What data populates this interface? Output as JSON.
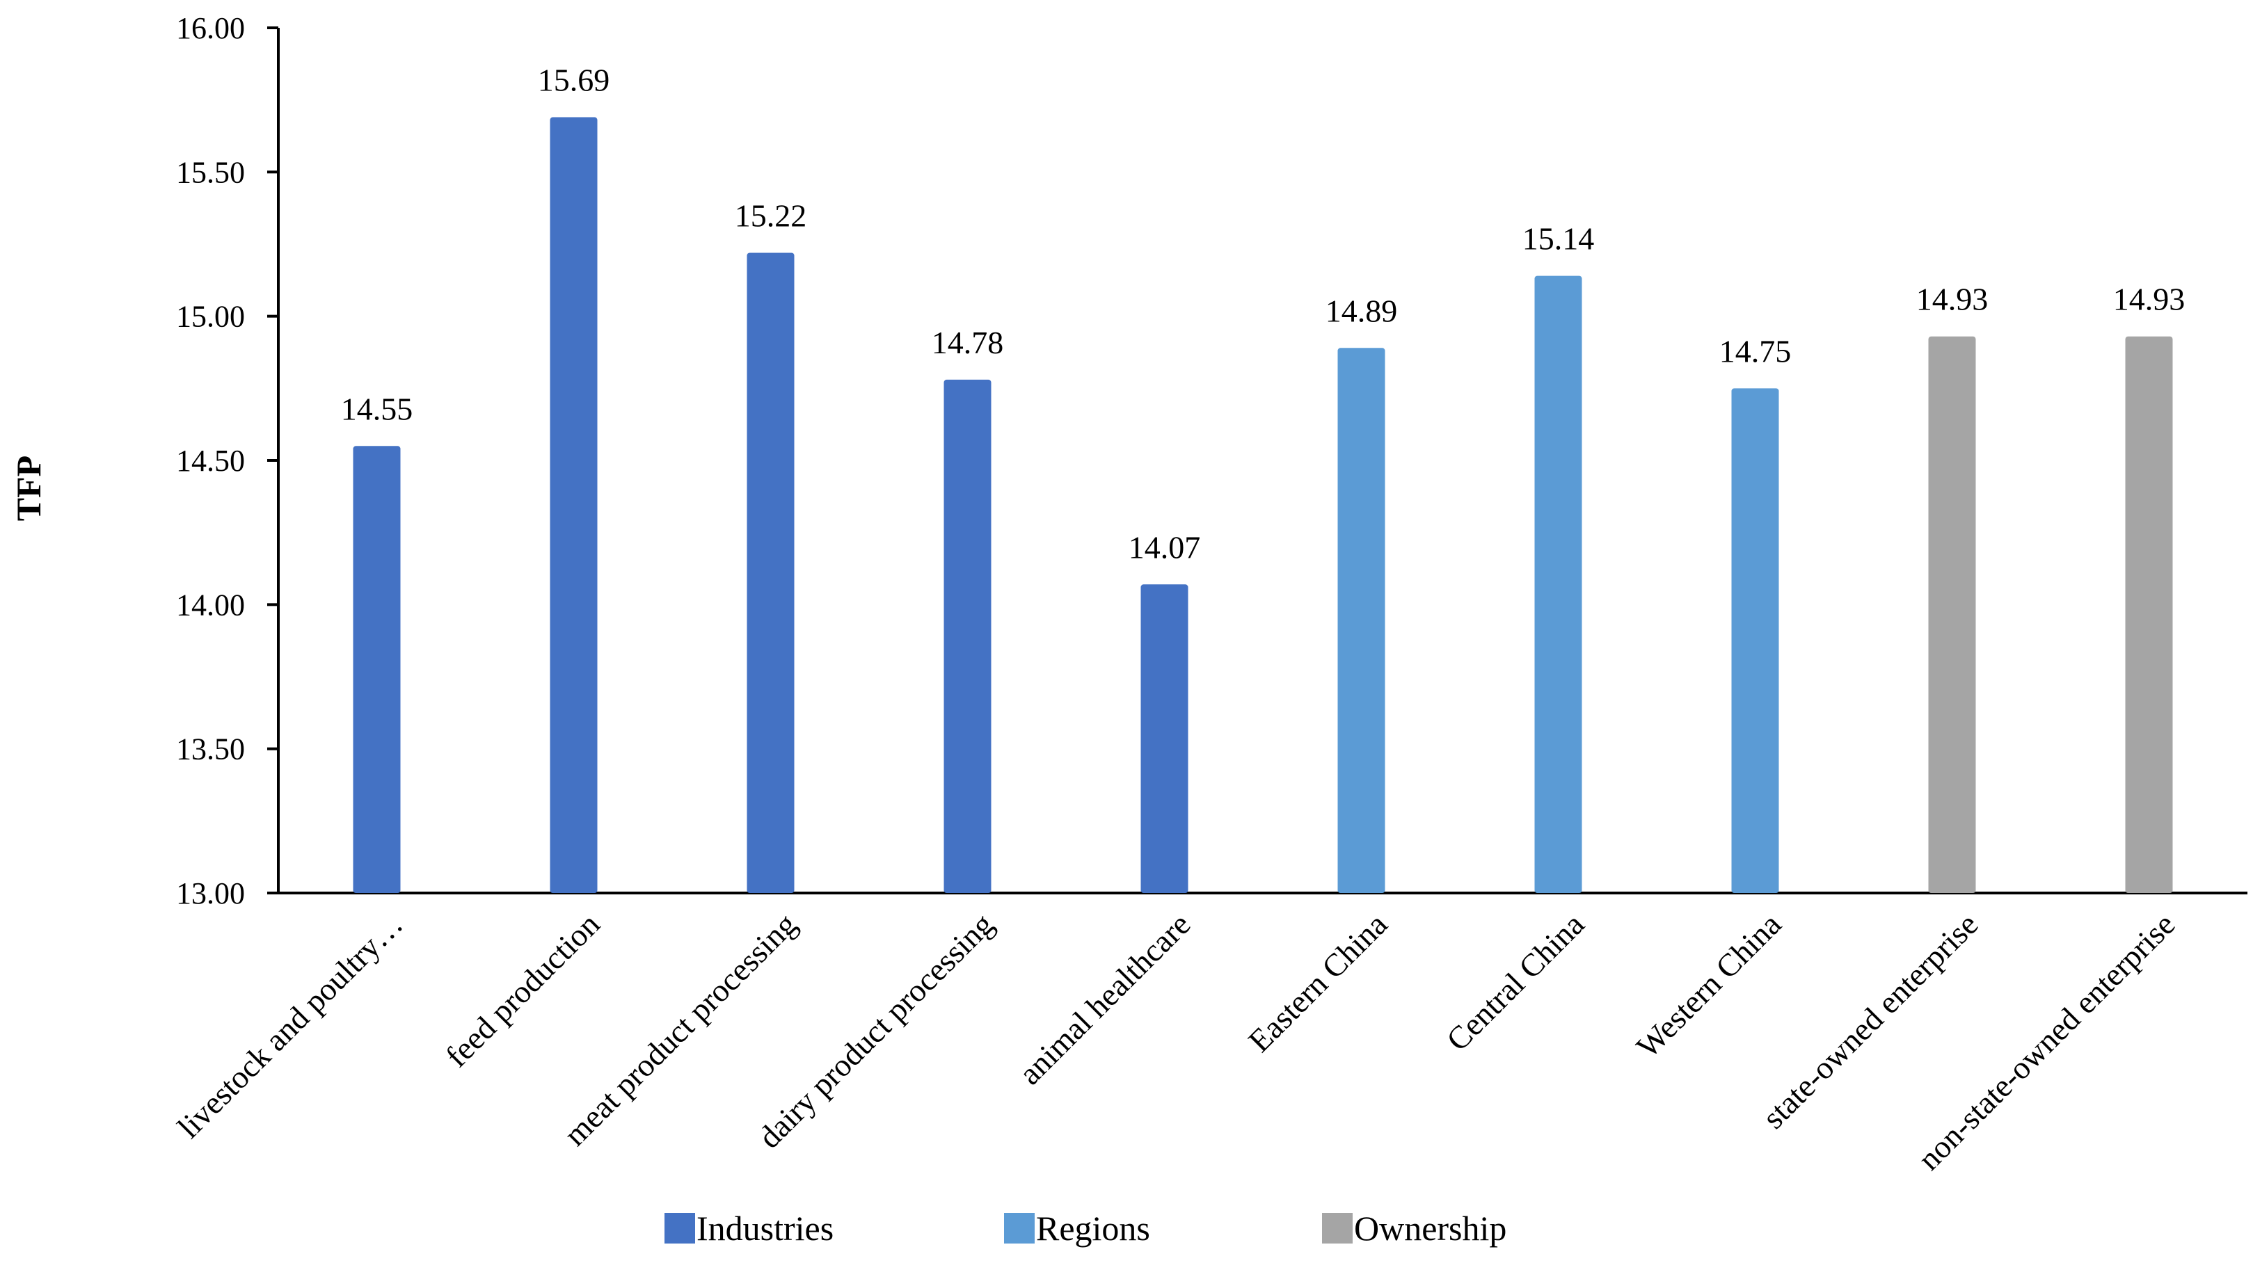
{
  "chart_data": {
    "type": "bar",
    "title": "",
    "xlabel": "",
    "ylabel": "TFP",
    "ylim": [
      13.0,
      16.0
    ],
    "yticks": [
      "13.00",
      "13.50",
      "14.00",
      "14.50",
      "15.00",
      "15.50",
      "16.00"
    ],
    "categories": [
      "livestock and poultry…",
      "feed production",
      "meat product processing",
      "dairy product processing",
      "animal healthcare",
      "Eastern China",
      "Central China",
      "Western China",
      "state-owned enterprise",
      "non-state-owned enterprise"
    ],
    "values": [
      14.55,
      15.69,
      15.22,
      14.78,
      14.07,
      14.89,
      15.14,
      14.75,
      14.93,
      14.93
    ],
    "value_labels": [
      "14.55",
      "15.69",
      "15.22",
      "14.78",
      "14.07",
      "14.89",
      "15.14",
      "14.75",
      "14.93",
      "14.93"
    ],
    "groups": [
      "Industries",
      "Industries",
      "Industries",
      "Industries",
      "Industries",
      "Regions",
      "Regions",
      "Regions",
      "Ownership",
      "Ownership"
    ],
    "legend": [
      {
        "name": "Industries",
        "color": "#4472C4"
      },
      {
        "name": "Regions",
        "color": "#5B9BD5"
      },
      {
        "name": "Ownership",
        "color": "#A5A5A5"
      }
    ],
    "legend_position": "bottom",
    "grid": false
  }
}
